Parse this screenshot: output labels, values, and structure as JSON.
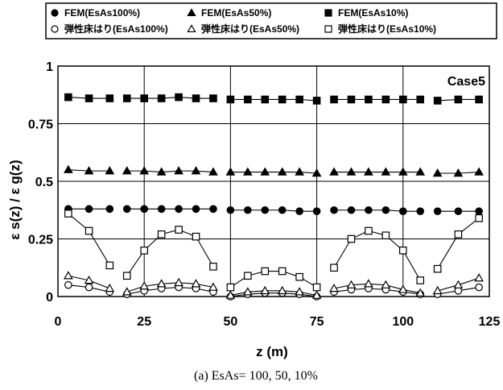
{
  "chart_data": {
    "type": "line",
    "panel_label": "Case5",
    "xlabel": "z (m)",
    "ylabel": "ε s(z) / ε g(z)",
    "caption": "(a) EsAs= 100, 50, 10%",
    "xlim": [
      0,
      125
    ],
    "ylim": [
      0,
      1
    ],
    "x_ticks": [
      "0",
      "25",
      "50",
      "75",
      "100",
      "125"
    ],
    "y_ticks": [
      "0",
      "0.25",
      "0.5",
      "0.75",
      "1"
    ],
    "grid": {
      "horizontal": true,
      "vertical_at": [
        25,
        50,
        75,
        100
      ]
    },
    "legend_placement": "top",
    "segments": [
      [
        3,
        15
      ],
      [
        20,
        45
      ],
      [
        50,
        75
      ],
      [
        80,
        105
      ],
      [
        110,
        122
      ]
    ],
    "series": [
      {
        "name": "FEM(EsAs100%)",
        "marker": "circle-filled",
        "x": [
          3,
          9,
          15,
          20,
          25,
          30,
          35,
          40,
          45,
          50,
          55,
          60,
          65,
          70,
          75,
          80,
          85,
          90,
          95,
          100,
          105,
          110,
          116,
          122
        ],
        "y": [
          0.38,
          0.38,
          0.38,
          0.38,
          0.38,
          0.38,
          0.38,
          0.38,
          0.38,
          0.375,
          0.375,
          0.375,
          0.375,
          0.37,
          0.37,
          0.375,
          0.375,
          0.375,
          0.375,
          0.37,
          0.37,
          0.37,
          0.37,
          0.37
        ]
      },
      {
        "name": "FEM(EsAs50%)",
        "marker": "triangle-filled",
        "x": [
          3,
          9,
          15,
          20,
          25,
          30,
          35,
          40,
          45,
          50,
          55,
          60,
          65,
          70,
          75,
          80,
          85,
          90,
          95,
          100,
          105,
          110,
          116,
          122
        ],
        "y": [
          0.55,
          0.545,
          0.545,
          0.545,
          0.545,
          0.54,
          0.545,
          0.545,
          0.54,
          0.54,
          0.54,
          0.54,
          0.54,
          0.54,
          0.535,
          0.54,
          0.54,
          0.54,
          0.54,
          0.54,
          0.54,
          0.535,
          0.535,
          0.54
        ]
      },
      {
        "name": "FEM(EsAs10%)",
        "marker": "square-filled",
        "x": [
          3,
          9,
          15,
          20,
          25,
          30,
          35,
          40,
          45,
          50,
          55,
          60,
          65,
          70,
          75,
          80,
          85,
          90,
          95,
          100,
          105,
          110,
          116,
          122
        ],
        "y": [
          0.865,
          0.86,
          0.86,
          0.86,
          0.86,
          0.86,
          0.865,
          0.86,
          0.86,
          0.855,
          0.855,
          0.855,
          0.855,
          0.855,
          0.85,
          0.855,
          0.855,
          0.855,
          0.855,
          0.855,
          0.855,
          0.85,
          0.855,
          0.855
        ]
      },
      {
        "name": "弾性床はり(EsAs100%)",
        "marker": "circle-open",
        "x": [
          3,
          9,
          15,
          20,
          25,
          30,
          35,
          40,
          45,
          50,
          55,
          60,
          65,
          70,
          75,
          80,
          85,
          90,
          95,
          100,
          105,
          110,
          116,
          122
        ],
        "y": [
          0.05,
          0.04,
          0.02,
          0.01,
          0.025,
          0.035,
          0.04,
          0.035,
          0.02,
          0.0,
          0.01,
          0.015,
          0.015,
          0.01,
          0.0,
          0.02,
          0.03,
          0.035,
          0.03,
          0.02,
          0.01,
          0.01,
          0.025,
          0.04
        ]
      },
      {
        "name": "弾性床はり(EsAs50%)",
        "marker": "triangle-open",
        "x": [
          3,
          9,
          15,
          20,
          25,
          30,
          35,
          40,
          45,
          50,
          55,
          60,
          65,
          70,
          75,
          80,
          85,
          90,
          95,
          100,
          105,
          110,
          116,
          122
        ],
        "y": [
          0.09,
          0.07,
          0.035,
          0.02,
          0.045,
          0.055,
          0.06,
          0.055,
          0.04,
          0.005,
          0.02,
          0.025,
          0.025,
          0.02,
          0.005,
          0.035,
          0.05,
          0.055,
          0.05,
          0.03,
          0.015,
          0.025,
          0.05,
          0.08
        ]
      },
      {
        "name": "弾性床はり(EsAs10%)",
        "marker": "square-open",
        "x": [
          3,
          9,
          15,
          20,
          25,
          30,
          35,
          40,
          45,
          50,
          55,
          60,
          65,
          70,
          75,
          80,
          85,
          90,
          95,
          100,
          105,
          110,
          116,
          122
        ],
        "y": [
          0.36,
          0.285,
          0.135,
          0.09,
          0.2,
          0.27,
          0.29,
          0.26,
          0.13,
          0.04,
          0.09,
          0.11,
          0.11,
          0.085,
          0.04,
          0.125,
          0.25,
          0.285,
          0.265,
          0.2,
          0.07,
          0.12,
          0.27,
          0.34
        ]
      }
    ]
  }
}
